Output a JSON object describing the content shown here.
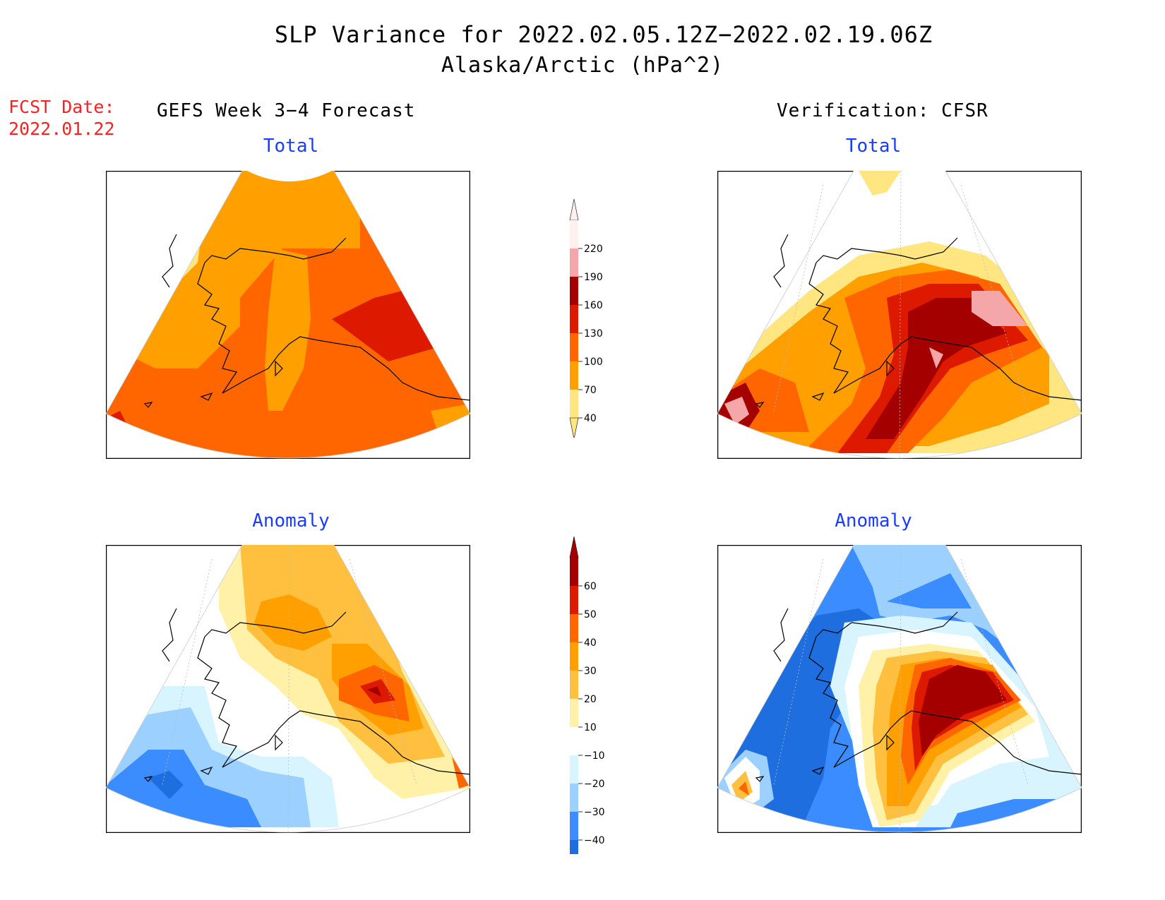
{
  "header": {
    "title_line1": "SLP Variance for 2022.02.05.12Z−2022.02.19.06Z",
    "title_line2": "Alaska/Arctic (hPa^2)",
    "fcst_label": "FCST Date:",
    "fcst_date": "2022.01.22",
    "left_heading": "GEFS Week 3−4 Forecast",
    "right_heading": "Verification: CFSR"
  },
  "panels": {
    "top_left_title": "Total",
    "top_right_title": "Total",
    "bottom_left_title": "Anomaly",
    "bottom_right_title": "Anomaly"
  },
  "colorbar_total": {
    "ticks": [
      "220",
      "190",
      "160",
      "130",
      "100",
      "70",
      "40"
    ],
    "colors": [
      "#fff0f0",
      "#f4a6a8",
      "#a50000",
      "#dd1a00",
      "#ff6600",
      "#ffa000",
      "#ffe680"
    ]
  },
  "colorbar_anomaly": {
    "ticks": [
      "60",
      "50",
      "40",
      "30",
      "20",
      "10",
      "−10",
      "−20",
      "−30",
      "−40"
    ],
    "colors": [
      "#a50000",
      "#dd1a00",
      "#ff6600",
      "#ffa000",
      "#ffc040",
      "#fff2a8",
      "#ffffff",
      "#d8f4ff",
      "#9cd0ff",
      "#3a8cff",
      "#1e6ee0"
    ]
  }
}
